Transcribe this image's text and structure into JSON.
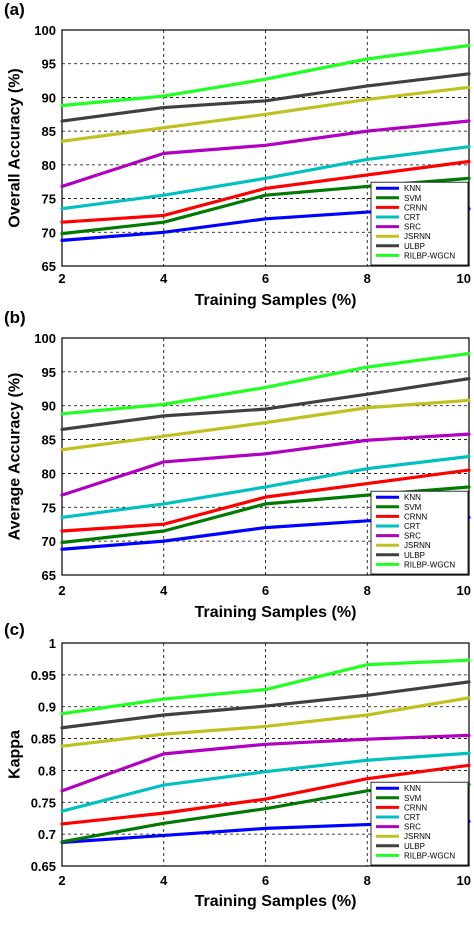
{
  "legend_entries": [
    "KNN",
    "SVM",
    "CRNN",
    "CRT",
    "SRC",
    "JSRNN",
    "ULBP",
    "RILBP-WGCN"
  ],
  "colors": {
    "KNN": "#0000ff",
    "SVM": "#007a00",
    "CRNN": "#ff0000",
    "CRT": "#00c0c0",
    "SRC": "#b000c0",
    "JSRNN": "#c0c020",
    "ULBP": "#404040",
    "RILBP-WGCN": "#20ff20"
  },
  "chart_data": [
    {
      "type": "line",
      "panel_label": "(a)",
      "xlabel": "Training Samples (%)",
      "ylabel": "Overall Accuracy (%)",
      "x": [
        2,
        4,
        6,
        8,
        10
      ],
      "xlim": [
        2,
        10
      ],
      "ylim": [
        65,
        100
      ],
      "xticks": [
        "2",
        "4",
        "6",
        "8",
        "10"
      ],
      "yticks": [
        "65",
        "70",
        "75",
        "80",
        "85",
        "90",
        "95",
        "100"
      ],
      "grid": true,
      "legend_position": "bottom-right",
      "series": [
        {
          "name": "KNN",
          "values": [
            68.8,
            70.0,
            72.0,
            73.0,
            73.5
          ]
        },
        {
          "name": "SVM",
          "values": [
            69.8,
            71.5,
            75.5,
            76.8,
            78.0
          ]
        },
        {
          "name": "CRNN",
          "values": [
            71.5,
            72.5,
            76.5,
            78.5,
            80.5
          ]
        },
        {
          "name": "CRT",
          "values": [
            73.5,
            75.5,
            78.0,
            80.8,
            82.7
          ]
        },
        {
          "name": "SRC",
          "values": [
            76.8,
            81.7,
            82.9,
            85.0,
            86.5
          ]
        },
        {
          "name": "JSRNN",
          "values": [
            83.5,
            85.5,
            87.5,
            89.7,
            91.5
          ]
        },
        {
          "name": "ULBP",
          "values": [
            86.5,
            88.5,
            89.5,
            91.7,
            93.5
          ]
        },
        {
          "name": "RILBP-WGCN",
          "values": [
            88.8,
            90.2,
            92.7,
            95.7,
            97.7
          ]
        }
      ]
    },
    {
      "type": "line",
      "panel_label": "(b)",
      "xlabel": "Training Samples (%)",
      "ylabel": "Average Accuracy (%)",
      "x": [
        2,
        4,
        6,
        8,
        10
      ],
      "xlim": [
        2,
        10
      ],
      "ylim": [
        65,
        100
      ],
      "xticks": [
        "2",
        "4",
        "6",
        "8",
        "10"
      ],
      "yticks": [
        "65",
        "70",
        "75",
        "80",
        "85",
        "90",
        "95",
        "100"
      ],
      "grid": true,
      "legend_position": "bottom-right",
      "series": [
        {
          "name": "KNN",
          "values": [
            68.8,
            70.0,
            72.0,
            73.0,
            73.5
          ]
        },
        {
          "name": "SVM",
          "values": [
            69.8,
            71.5,
            75.5,
            76.8,
            78.0
          ]
        },
        {
          "name": "CRNN",
          "values": [
            71.5,
            72.5,
            76.5,
            78.5,
            80.5
          ]
        },
        {
          "name": "CRT",
          "values": [
            73.5,
            75.5,
            78.0,
            80.7,
            82.5
          ]
        },
        {
          "name": "SRC",
          "values": [
            76.8,
            81.7,
            82.9,
            84.9,
            85.8
          ]
        },
        {
          "name": "JSRNN",
          "values": [
            83.5,
            85.5,
            87.5,
            89.7,
            90.8
          ]
        },
        {
          "name": "ULBP",
          "values": [
            86.5,
            88.5,
            89.5,
            91.7,
            94.0
          ]
        },
        {
          "name": "RILBP-WGCN",
          "values": [
            88.8,
            90.2,
            92.7,
            95.7,
            97.7
          ]
        }
      ]
    },
    {
      "type": "line",
      "panel_label": "(c)",
      "xlabel": "Training Samples (%)",
      "ylabel": "Kappa",
      "x": [
        2,
        4,
        6,
        8,
        10
      ],
      "xlim": [
        2,
        10
      ],
      "ylim": [
        0.65,
        1
      ],
      "xticks": [
        "2",
        "4",
        "6",
        "8",
        "10"
      ],
      "yticks": [
        "0.65",
        "0.7",
        "0.75",
        "0.8",
        "0.85",
        "0.9",
        "0.95",
        "1"
      ],
      "grid": true,
      "legend_position": "bottom-right",
      "series": [
        {
          "name": "KNN",
          "values": [
            0.687,
            0.698,
            0.709,
            0.715,
            0.72
          ]
        },
        {
          "name": "SVM",
          "values": [
            0.688,
            0.717,
            0.74,
            0.768,
            0.778
          ]
        },
        {
          "name": "CRNN",
          "values": [
            0.716,
            0.733,
            0.755,
            0.787,
            0.808
          ]
        },
        {
          "name": "CRT",
          "values": [
            0.736,
            0.777,
            0.798,
            0.816,
            0.827
          ]
        },
        {
          "name": "SRC",
          "values": [
            0.768,
            0.826,
            0.841,
            0.849,
            0.855
          ]
        },
        {
          "name": "JSRNN",
          "values": [
            0.838,
            0.857,
            0.869,
            0.887,
            0.914
          ]
        },
        {
          "name": "ULBP",
          "values": [
            0.867,
            0.887,
            0.901,
            0.918,
            0.939
          ]
        },
        {
          "name": "RILBP-WGCN",
          "values": [
            0.889,
            0.912,
            0.927,
            0.966,
            0.973
          ]
        }
      ]
    }
  ]
}
